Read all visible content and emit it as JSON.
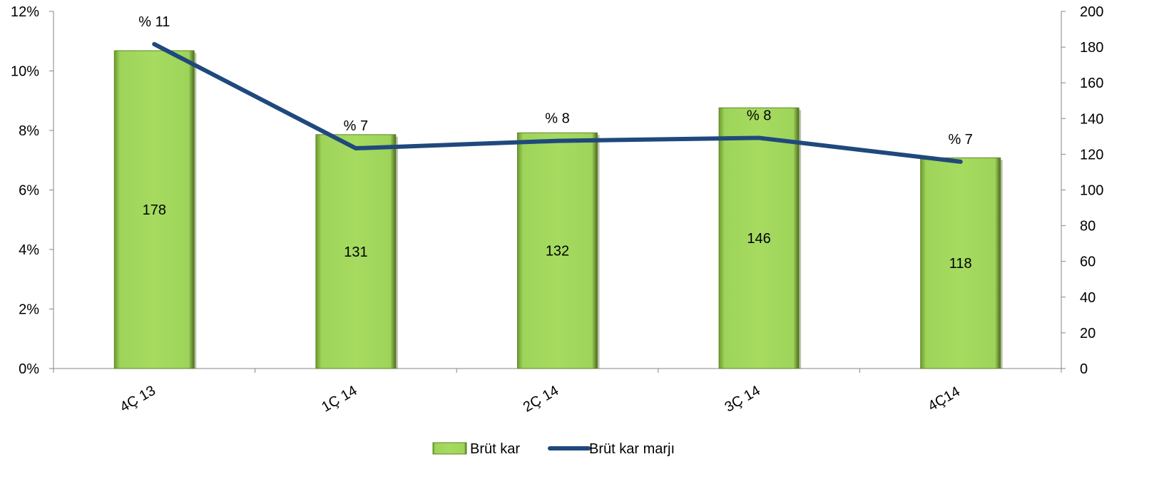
{
  "chart_data": {
    "type": "bar",
    "categories": [
      "4Ç 13",
      "1Ç 14",
      "2Ç 14",
      "3Ç 14",
      "4Ç14"
    ],
    "series": [
      {
        "name": "Brüt kar",
        "type": "bar",
        "axis": "right",
        "values": [
          178,
          131,
          132,
          146,
          118
        ],
        "labels": [
          "178",
          "131",
          "132",
          "146",
          "118"
        ],
        "color": "#92D050"
      },
      {
        "name": "Brüt kar marjı",
        "type": "line",
        "axis": "left",
        "values": [
          0.109,
          0.074,
          0.0765,
          0.0775,
          0.0695
        ],
        "labels": [
          "% 11",
          "% 7",
          "% 8",
          "% 8",
          "% 7"
        ],
        "color": "#1F497D"
      }
    ],
    "y_left": {
      "ylim": [
        0,
        0.12
      ],
      "ticks": [
        0,
        0.02,
        0.04,
        0.06,
        0.08,
        0.1,
        0.12
      ],
      "tick_labels": [
        "0%",
        "2%",
        "4%",
        "6%",
        "8%",
        "10%",
        "12%"
      ]
    },
    "y_right": {
      "ylim": [
        0,
        200
      ],
      "ticks": [
        0,
        20,
        40,
        60,
        80,
        100,
        120,
        140,
        160,
        180,
        200
      ],
      "tick_labels": [
        "0",
        "20",
        "40",
        "60",
        "80",
        "100",
        "120",
        "140",
        "160",
        "180",
        "200"
      ]
    },
    "grid": false,
    "legend_position": "bottom"
  }
}
